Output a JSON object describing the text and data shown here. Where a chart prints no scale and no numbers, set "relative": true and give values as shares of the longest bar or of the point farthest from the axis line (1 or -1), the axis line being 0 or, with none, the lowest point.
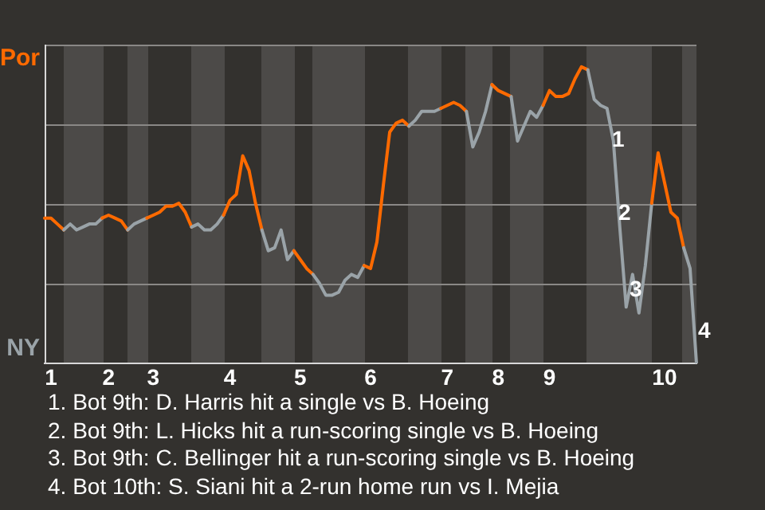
{
  "chart_data": {
    "type": "line",
    "categories": [
      null,
      "1",
      null,
      null,
      null,
      null,
      null,
      null,
      null,
      null,
      "2",
      null,
      null,
      null,
      null,
      null,
      null,
      "3",
      null,
      null,
      null,
      null,
      null,
      null,
      null,
      null,
      null,
      null,
      null,
      "4",
      null,
      null,
      null,
      null,
      null,
      null,
      null,
      null,
      null,
      null,
      "5",
      null,
      null,
      null,
      null,
      null,
      null,
      null,
      null,
      null,
      null,
      "6",
      null,
      null,
      null,
      null,
      null,
      null,
      null,
      null,
      null,
      null,
      null,
      "7",
      null,
      null,
      null,
      null,
      null,
      null,
      null,
      "8",
      null,
      null,
      null,
      null,
      null,
      null,
      null,
      "9",
      null,
      null,
      null,
      null,
      null,
      null,
      null,
      null,
      null,
      null,
      null,
      null,
      null,
      null,
      null,
      null,
      null,
      "10",
      null,
      null,
      null,
      null,
      null
    ],
    "relative": true,
    "legend": "left",
    "marker": "none",
    "series": [
      {
        "name": "Por",
        "color": "#ff6a00",
        "values": [
          0.49,
          0.49,
          0.47,
          0.45,
          null,
          null,
          null,
          null,
          null,
          0.49,
          0.5,
          0.49,
          0.48,
          0.45,
          null,
          null,
          0.49,
          0.5,
          0.51,
          0.53,
          0.53,
          0.54,
          0.51,
          0.46,
          null,
          null,
          null,
          null,
          0.5,
          0.55,
          0.57,
          0.7,
          0.65,
          0.54,
          0.45,
          null,
          null,
          null,
          null,
          0.38,
          0.35,
          0.32,
          0.3,
          null,
          null,
          null,
          null,
          null,
          null,
          null,
          0.33,
          0.32,
          0.41,
          0.6,
          0.78,
          0.81,
          0.82,
          0.8,
          null,
          null,
          null,
          null,
          0.86,
          0.87,
          0.88,
          0.87,
          0.85,
          null,
          null,
          null,
          0.94,
          0.92,
          0.91,
          0.9,
          null,
          null,
          null,
          null,
          0.87,
          0.92,
          0.9,
          0.9,
          0.91,
          0.96,
          1,
          0.99,
          null,
          null,
          null,
          null,
          null,
          null,
          null,
          null,
          null,
          0.54,
          0.71,
          0.61,
          0.51,
          0.49,
          0.39,
          null,
          null
        ]
      },
      {
        "name": "NY",
        "color": "#9aa3a8",
        "values": [
          null,
          null,
          null,
          0.45,
          0.47,
          0.45,
          0.46,
          0.47,
          0.47,
          0.49,
          null,
          null,
          null,
          0.45,
          0.47,
          0.48,
          0.49,
          null,
          null,
          null,
          null,
          null,
          null,
          0.46,
          0.47,
          0.45,
          0.45,
          0.47,
          0.5,
          null,
          null,
          null,
          null,
          null,
          0.45,
          0.38,
          0.39,
          0.45,
          0.35,
          0.38,
          null,
          null,
          0.3,
          0.27,
          0.23,
          0.23,
          0.24,
          0.28,
          0.3,
          0.29,
          0.33,
          null,
          null,
          null,
          null,
          null,
          null,
          0.8,
          0.82,
          0.85,
          0.85,
          0.85,
          0.86,
          null,
          null,
          null,
          0.85,
          0.73,
          0.78,
          0.85,
          0.94,
          null,
          null,
          0.9,
          0.75,
          0.8,
          0.85,
          0.83,
          0.87,
          null,
          null,
          null,
          null,
          null,
          null,
          0.99,
          0.89,
          0.87,
          0.86,
          0.75,
          0.46,
          0.19,
          0.3,
          0.17,
          0.33,
          0.54,
          null,
          null,
          null,
          null,
          0.39,
          0.32,
          0
        ]
      }
    ],
    "annotations": [
      "1",
      "2",
      "3",
      "4",
      "1. Bot 9th: D. Harris hit a single vs B. Hoeing",
      "2. Bot 9th: L. Hicks hit a run-scoring single vs B. Hoeing",
      "3. Bot 9th: C. Bellinger hit a run-scoring single vs B. Hoeing",
      "4. Bot 10th: S. Siani hit a 2-run home run vs I. Mejia"
    ]
  }
}
